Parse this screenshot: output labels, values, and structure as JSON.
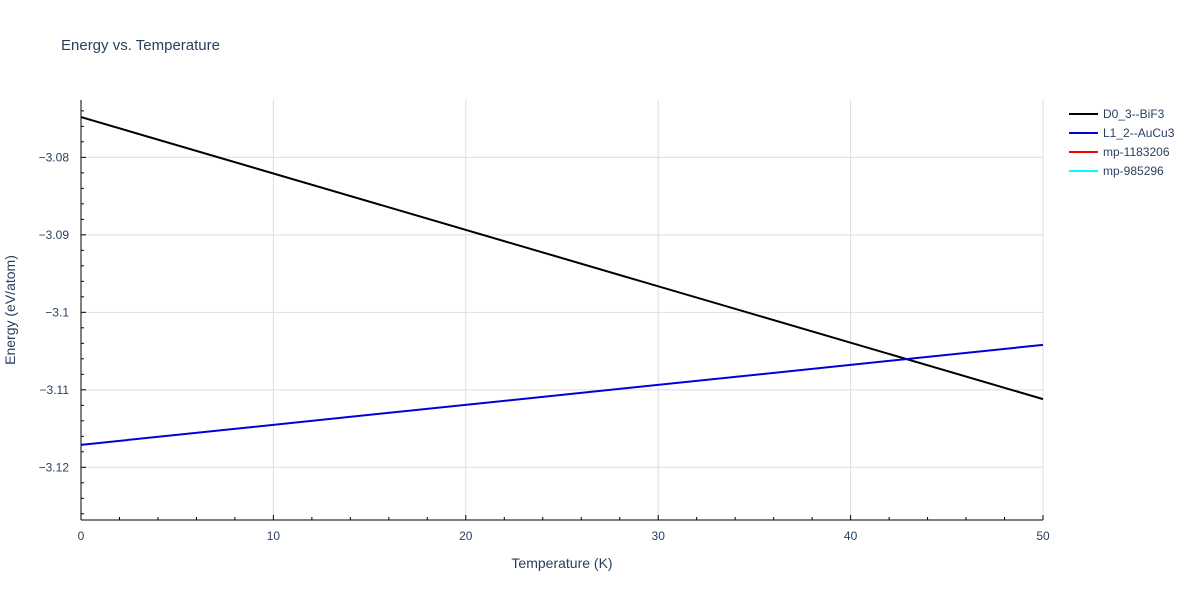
{
  "chart_data": {
    "type": "line",
    "title": "Energy vs. Temperature",
    "xlabel": "Temperature (K)",
    "ylabel": "Energy (eV/atom)",
    "xlim": [
      0,
      50
    ],
    "ylim": [
      -3.1268,
      -3.0726
    ],
    "x_ticks": [
      0,
      10,
      20,
      30,
      40,
      50
    ],
    "x_tick_labels": [
      "0",
      "10",
      "20",
      "30",
      "40",
      "50"
    ],
    "y_ticks": [
      -3.08,
      -3.09,
      -3.1,
      -3.11,
      -3.12
    ],
    "y_tick_labels": [
      "−3.08",
      "−3.09",
      "−3.1",
      "−3.11",
      "−3.12"
    ],
    "grid": true,
    "legend_position": "top-right",
    "series": [
      {
        "name": "D0_3--BiF3",
        "color": "#000000",
        "x": [
          0,
          50
        ],
        "y": [
          -3.0748,
          -3.1112
        ]
      },
      {
        "name": "L1_2--AuCu3",
        "color": "#0000dd",
        "x": [
          0,
          50
        ],
        "y": [
          -3.1171,
          -3.1042
        ]
      },
      {
        "name": "mp-1183206",
        "color": "#ff0000",
        "x": [],
        "y": []
      },
      {
        "name": "mp-985296",
        "color": "#00ffff",
        "x": [],
        "y": []
      }
    ]
  }
}
